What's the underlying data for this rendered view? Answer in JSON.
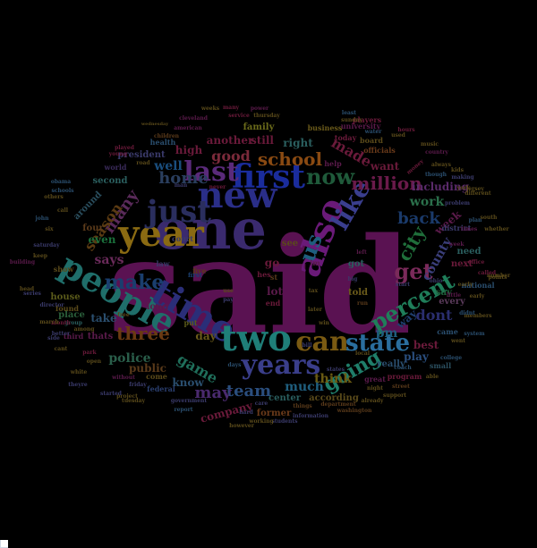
{
  "words": [
    {
      "text": "said",
      "color": "#5a1252"
    },
    {
      "text": "one",
      "color": "#3a2a6e"
    },
    {
      "text": "year",
      "color": "#8a6a12"
    },
    {
      "text": "new",
      "color": "#2a2e88"
    },
    {
      "text": "also",
      "color": "#6a1a78"
    },
    {
      "text": "people",
      "color": "#1f6e6a"
    },
    {
      "text": "first",
      "color": "#1a2c9c"
    },
    {
      "text": "time",
      "color": "#2a2e78"
    },
    {
      "text": "two",
      "color": "#1f7e78"
    },
    {
      "text": "just",
      "color": "#2a2e5e"
    },
    {
      "text": "last",
      "color": "#5a2a7a"
    },
    {
      "text": "like",
      "color": "#3a3e8e"
    },
    {
      "text": "years",
      "color": "#3a3e8a"
    },
    {
      "text": "can",
      "color": "#7a5a12"
    },
    {
      "text": "state",
      "color": "#2a6e9e"
    },
    {
      "text": "now",
      "color": "#1f5a3a"
    },
    {
      "text": "us",
      "color": "#1f5e7e"
    },
    {
      "text": "get",
      "color": "#7a2a5a"
    },
    {
      "text": "percent",
      "color": "#1f7e5a"
    },
    {
      "text": "make",
      "color": "#1a3e6e"
    },
    {
      "text": "three",
      "color": "#6a3a12"
    },
    {
      "text": "school",
      "color": "#8a4a12"
    },
    {
      "text": "million",
      "color": "#6a1a4a"
    },
    {
      "text": "going",
      "color": "#1f7e6a"
    },
    {
      "text": "city",
      "color": "#1f6e3a"
    },
    {
      "text": "back",
      "color": "#1a3a6a"
    },
    {
      "text": "many",
      "color": "#5a2a5a"
    },
    {
      "text": "home",
      "color": "#2a3e5e"
    },
    {
      "text": "good",
      "color": "#7a2a3a"
    },
    {
      "text": "team",
      "color": "#2a4e7e"
    },
    {
      "text": "game",
      "color": "#1f6e5a"
    },
    {
      "text": "may",
      "color": "#4a2a6e"
    },
    {
      "text": "police",
      "color": "#2a5e4a"
    },
    {
      "text": "county",
      "color": "#3a3e7a"
    },
    {
      "text": "season",
      "color": "#5a3a12"
    },
    {
      "text": "much",
      "color": "#1f5e7e"
    },
    {
      "text": "made",
      "color": "#6a1a3a"
    },
    {
      "text": "work",
      "color": "#2a6e4a"
    },
    {
      "text": "dont",
      "color": "#2a2e6e"
    },
    {
      "text": "think",
      "color": "#6a5a12"
    },
    {
      "text": "says",
      "color": "#6a2a5a"
    },
    {
      "text": "well",
      "color": "#1a4e7e"
    },
    {
      "text": "right",
      "color": "#2a5e5e"
    },
    {
      "text": "still",
      "color": "#6a1a3a"
    },
    {
      "text": "even",
      "color": "#1a6e3a"
    },
    {
      "text": "day",
      "color": "#6a5a1a"
    },
    {
      "text": "another",
      "color": "#6a1a3a"
    },
    {
      "text": "week",
      "color": "#5a1a4a"
    },
    {
      "text": "including",
      "color": "#5a2a6a"
    },
    {
      "text": "pm",
      "color": "#1f5e7e"
    },
    {
      "text": "way",
      "color": "#1f3e6e"
    },
    {
      "text": "go",
      "color": "#6a1a3a"
    },
    {
      "text": "lot",
      "color": "#5a1a4a"
    },
    {
      "text": "know",
      "color": "#2a4e6e"
    },
    {
      "text": "best",
      "color": "#6a1a3a"
    },
    {
      "text": "public",
      "color": "#5a3a1a"
    },
    {
      "text": "second",
      "color": "#2a5e5e"
    },
    {
      "text": "high",
      "color": "#6a1a3a"
    },
    {
      "text": "family",
      "color": "#6a6a1a"
    },
    {
      "text": "president",
      "color": "#3a3a6a"
    },
    {
      "text": "want",
      "color": "#6a1a3a"
    },
    {
      "text": "next",
      "color": "#6a1a3a"
    },
    {
      "text": "play",
      "color": "#2a4e7e"
    },
    {
      "text": "take",
      "color": "#2a4e6e"
    },
    {
      "text": "four",
      "color": "#5a3a1a"
    },
    {
      "text": "say",
      "color": "#1f5e3a"
    },
    {
      "text": "need",
      "color": "#2a5e5e"
    },
    {
      "text": "company",
      "color": "#6a1a3a"
    },
    {
      "text": "every",
      "color": "#5a3a5a"
    },
    {
      "text": "center",
      "color": "#2a5e5e"
    },
    {
      "text": "according",
      "color": "#5a4a1a"
    },
    {
      "text": "former",
      "color": "#6a3a1a"
    },
    {
      "text": "around",
      "color": "#2a4e5e"
    },
    {
      "text": "thats",
      "color": "#5a1a4a"
    },
    {
      "text": "place",
      "color": "#2a5e3a"
    },
    {
      "text": "house",
      "color": "#5a5a1a"
    },
    {
      "text": "told",
      "color": "#6a5a1a"
    },
    {
      "text": "got",
      "color": "#2a5e5e"
    },
    {
      "text": "see",
      "color": "#5a4a1a"
    },
    {
      "text": "long",
      "color": "#5a1a4a"
    },
    {
      "text": "really",
      "color": "#2a4e6e"
    },
    {
      "text": "five",
      "color": "#5a3a1a"
    },
    {
      "text": "found",
      "color": "#5a4a1a"
    },
    {
      "text": "law",
      "color": "#3a3a6a"
    },
    {
      "text": "show",
      "color": "#5a4a1a"
    },
    {
      "text": "put",
      "color": "#5a5a1a"
    },
    {
      "text": "end",
      "color": "#6a1a3a"
    },
    {
      "text": "first-small",
      "color": "#1a3e6e"
    },
    {
      "text": "officials",
      "color": "#6a3a1a"
    },
    {
      "text": "great",
      "color": "#5a1a4a"
    },
    {
      "text": "program",
      "color": "#6a1a3a"
    },
    {
      "text": "department",
      "color": "#5a3a1a"
    },
    {
      "text": "national",
      "color": "#2a4e6e"
    },
    {
      "text": "government",
      "color": "#3a3a6a"
    },
    {
      "text": "never",
      "color": "#6a1a3a"
    },
    {
      "text": "world",
      "color": "#3a2a5a"
    },
    {
      "text": "health",
      "color": "#2a4e6e"
    },
    {
      "text": "business",
      "color": "#6a5a1a"
    },
    {
      "text": "today",
      "color": "#6a1a3a"
    },
    {
      "text": "university",
      "color": "#5a1a4a"
    },
    {
      "text": "players",
      "color": "#6a1a3a"
    },
    {
      "text": "board",
      "color": "#5a4a1a"
    },
    {
      "text": "district",
      "color": "#3a3a6a"
    },
    {
      "text": "small",
      "color": "#2a4e5e"
    },
    {
      "text": "third",
      "color": "#5a1a4a"
    },
    {
      "text": "federal",
      "color": "#2a3e6e"
    },
    {
      "text": "things",
      "color": "#5a3a1a"
    },
    {
      "text": "students",
      "color": "#3a3a6a"
    },
    {
      "text": "washington",
      "color": "#5a3a1a"
    },
    {
      "text": "group",
      "color": "#2a5e5e"
    },
    {
      "text": "director",
      "color": "#3a3a6a"
    },
    {
      "text": "month",
      "color": "#6a1a3a"
    },
    {
      "text": "come",
      "color": "#5a4a1a"
    },
    {
      "text": "days",
      "color": "#2a4e6e"
    },
    {
      "text": "friday",
      "color": "#3a3a6a"
    },
    {
      "text": "help",
      "color": "#5a1a4a"
    },
    {
      "text": "court",
      "color": "#3a3a6a"
    },
    {
      "text": "children",
      "color": "#5a3a1a"
    },
    {
      "text": "man",
      "color": "#3a3a6a"
    },
    {
      "text": "john",
      "color": "#2a4e6e"
    },
    {
      "text": "little",
      "color": "#5a1a4a"
    },
    {
      "text": "later",
      "color": "#5a4a1a"
    },
    {
      "text": "win",
      "color": "#5a4a1a"
    },
    {
      "text": "tax",
      "color": "#5a4a1a"
    },
    {
      "text": "came",
      "color": "#2a4e6e"
    },
    {
      "text": "times",
      "color": "#5a1a4a"
    },
    {
      "text": "office",
      "color": "#6a1a3a"
    },
    {
      "text": "college",
      "color": "#2a4e6e"
    },
    {
      "text": "money",
      "color": "#6a1a3a"
    },
    {
      "text": "though",
      "color": "#2a4e6e"
    },
    {
      "text": "american",
      "color": "#5a1a4a"
    },
    {
      "text": "cleveland",
      "color": "#5a1a4a"
    },
    {
      "text": "service",
      "color": "#6a1a3a"
    },
    {
      "text": "thursday",
      "color": "#5a4a1a"
    },
    {
      "text": "country",
      "color": "#5a1a4a"
    },
    {
      "text": "music",
      "color": "#5a4a1a"
    },
    {
      "text": "road",
      "color": "#5a4a1a"
    },
    {
      "text": "support",
      "color": "#5a4a1a"
    },
    {
      "text": "street",
      "color": "#5a3a1a"
    },
    {
      "text": "working",
      "color": "#5a4a1a"
    },
    {
      "text": "report",
      "color": "#2a4e6e"
    },
    {
      "text": "plan",
      "color": "#2a4e6e"
    },
    {
      "text": "making",
      "color": "#3a3a6a"
    },
    {
      "text": "project",
      "color": "#5a4a1a"
    },
    {
      "text": "hes",
      "color": "#6a1a3a"
    },
    {
      "text": "im",
      "color": "#5a1a4a"
    },
    {
      "text": "left",
      "color": "#5a1a4a"
    },
    {
      "text": "st",
      "color": "#5a3a1a"
    },
    {
      "text": "run",
      "color": "#5a3a1a"
    },
    {
      "text": "use",
      "color": "#5a4a1a"
    },
    {
      "text": "pay",
      "color": "#3a3a6a"
    },
    {
      "text": "big",
      "color": "#3a3a6a"
    },
    {
      "text": "building",
      "color": "#5a1a4a"
    },
    {
      "text": "wednesday",
      "color": "#5a4a1a"
    },
    {
      "text": "played",
      "color": "#6a1a3a"
    },
    {
      "text": "young",
      "color": "#6a1a3a"
    },
    {
      "text": "weeks",
      "color": "#5a4a1a"
    },
    {
      "text": "many-small",
      "color": "#6a1a3a"
    },
    {
      "text": "power",
      "color": "#5a1a4a"
    },
    {
      "text": "water",
      "color": "#2a4e6e"
    },
    {
      "text": "sunday",
      "color": "#5a4a1a"
    },
    {
      "text": "obama",
      "color": "#2a4e6e"
    },
    {
      "text": "least",
      "color": "#2a4e6e"
    },
    {
      "text": "used",
      "color": "#5a4a1a"
    },
    {
      "text": "hours",
      "color": "#6a1a3a"
    },
    {
      "text": "kids",
      "color": "#5a4a1a"
    },
    {
      "text": "always",
      "color": "#5a4a1a"
    },
    {
      "text": "jersey",
      "color": "#5a4a1a"
    },
    {
      "text": "south",
      "color": "#5a4a1a"
    },
    {
      "text": "whether",
      "color": "#5a4a1a"
    },
    {
      "text": "different",
      "color": "#5a4a1a"
    },
    {
      "text": "problem",
      "color": "#3a3a6a"
    },
    {
      "text": "number",
      "color": "#5a4a1a"
    },
    {
      "text": "called",
      "color": "#6a1a3a"
    },
    {
      "text": "ohio",
      "color": "#3a3a6a"
    },
    {
      "text": "points",
      "color": "#5a4a1a"
    },
    {
      "text": "start",
      "color": "#3a3a6a"
    },
    {
      "text": "early",
      "color": "#5a4a1a"
    },
    {
      "text": "system",
      "color": "#2a4e6e"
    },
    {
      "text": "members",
      "color": "#5a4a1a"
    },
    {
      "text": "didnt",
      "color": "#2a4e6e"
    },
    {
      "text": "went",
      "color": "#5a4a1a"
    },
    {
      "text": "able",
      "color": "#5a4a1a"
    },
    {
      "text": "coach",
      "color": "#2a4e6e"
    },
    {
      "text": "night",
      "color": "#5a4a1a"
    },
    {
      "text": "already",
      "color": "#5a4a1a"
    },
    {
      "text": "information",
      "color": "#3a3a6a"
    },
    {
      "text": "care",
      "color": "#3a3a6a"
    },
    {
      "text": "however",
      "color": "#5a4a1a"
    },
    {
      "text": "hard",
      "color": "#3a3a6a"
    },
    {
      "text": "bill",
      "color": "#3a3a6a"
    },
    {
      "text": "local",
      "color": "#5a4a1a"
    },
    {
      "text": "states",
      "color": "#3a3a6a"
    },
    {
      "text": "without",
      "color": "#5a1a4a"
    },
    {
      "text": "open",
      "color": "#5a4a1a"
    },
    {
      "text": "started",
      "color": "#3a3a6a"
    },
    {
      "text": "tuesday",
      "color": "#5a4a1a"
    },
    {
      "text": "park",
      "color": "#6a1a3a"
    },
    {
      "text": "free",
      "color": "#5a4a1a"
    },
    {
      "text": "march",
      "color": "#5a4a1a"
    },
    {
      "text": "side",
      "color": "#3a3a6a"
    },
    {
      "text": "cant",
      "color": "#5a4a1a"
    },
    {
      "text": "white",
      "color": "#5a4a1a"
    },
    {
      "text": "theyre",
      "color": "#3a3a6a"
    },
    {
      "text": "better",
      "color": "#3a3a6a"
    },
    {
      "text": "among",
      "color": "#5a4a1a"
    },
    {
      "text": "saturday",
      "color": "#3a3a6a"
    },
    {
      "text": "six",
      "color": "#5a4a1a"
    },
    {
      "text": "call",
      "color": "#5a4a1a"
    },
    {
      "text": "others",
      "color": "#5a4a1a"
    },
    {
      "text": "schools",
      "color": "#2a4e6e"
    },
    {
      "text": "head",
      "color": "#5a4a1a"
    },
    {
      "text": "keep",
      "color": "#5a4a1a"
    },
    {
      "text": "series",
      "color": "#3a3a6a"
    },
    {
      "text": "early-2",
      "color": "#5a4a1a"
    },
    {
      "text": "york",
      "color": "#5a4a1a"
    },
    {
      "text": "week-small",
      "color": "#5a1a4a"
    }
  ],
  "page_corner": {
    "color": "#ffffff"
  }
}
